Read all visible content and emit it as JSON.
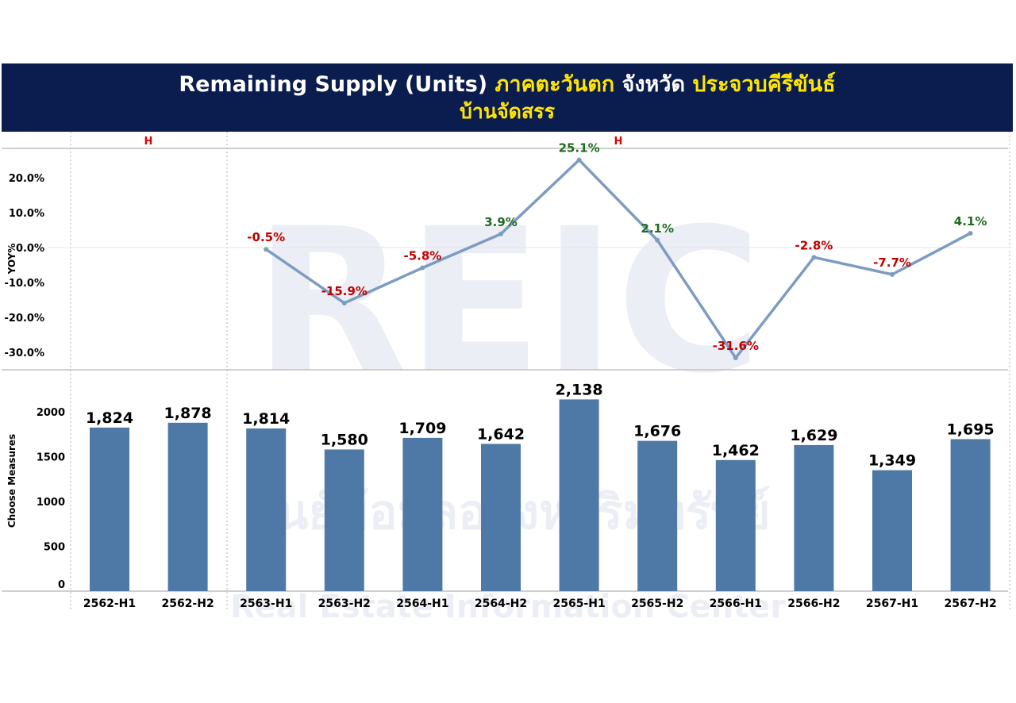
{
  "title": {
    "part1": "Remaining Supply (Units)",
    "part2": "ภาคตะวันตก",
    "part3": "จังหวัด",
    "part4": "ประจวบคีรีขันธ์",
    "line2": "บ้านจัดสรร"
  },
  "watermark": {
    "logo": "REIC",
    "thai": "ศูนย์ข้อมูลอสังหาริมทรัพย์",
    "english": "Real Estate Information Center"
  },
  "colors": {
    "title_bg": "#0b1c4f",
    "title_highlight": "#ffe600",
    "bar": "#4e79a7",
    "line": "#7d9cc1",
    "negative_label": "#c00000",
    "positive_label": "#1e6b1e"
  },
  "chart_data": [
    {
      "type": "line",
      "ylabel": "YOY%",
      "group_labels": [
        "H",
        "H"
      ],
      "categories": [
        "2562-H1",
        "2562-H2",
        "2563-H1",
        "2563-H2",
        "2564-H1",
        "2564-H2",
        "2565-H1",
        "2565-H2",
        "2566-H1",
        "2566-H2",
        "2567-H1",
        "2567-H2"
      ],
      "values": [
        null,
        null,
        -0.5,
        -15.9,
        -5.8,
        3.9,
        25.1,
        2.1,
        -31.6,
        -2.8,
        -7.7,
        4.1
      ],
      "data_labels": [
        "",
        "",
        "-0.5%",
        "-15.9%",
        "-5.8%",
        "3.9%",
        "25.1%",
        "2.1%",
        "-31.6%",
        "-2.8%",
        "-7.7%",
        "4.1%"
      ],
      "yticks": [
        "20.0%",
        "10.0%",
        "0.0%",
        "-10.0%",
        "-20.0%",
        "-30.0%"
      ],
      "ylim": [
        -33,
        26
      ]
    },
    {
      "type": "bar",
      "ylabel": "Choose Measures",
      "categories": [
        "2562-H1",
        "2562-H2",
        "2563-H1",
        "2563-H2",
        "2564-H1",
        "2564-H2",
        "2565-H1",
        "2565-H2",
        "2566-H1",
        "2566-H2",
        "2567-H1",
        "2567-H2"
      ],
      "values": [
        1824,
        1878,
        1814,
        1580,
        1709,
        1642,
        2138,
        1676,
        1462,
        1629,
        1349,
        1695
      ],
      "data_labels": [
        "1,824",
        "1,878",
        "1,814",
        "1,580",
        "1,709",
        "1,642",
        "2,138",
        "1,676",
        "1,462",
        "1,629",
        "1,349",
        "1,695"
      ],
      "yticks": [
        "2000",
        "1500",
        "1000",
        "500",
        "0"
      ],
      "ylim": [
        0,
        2400
      ]
    }
  ]
}
